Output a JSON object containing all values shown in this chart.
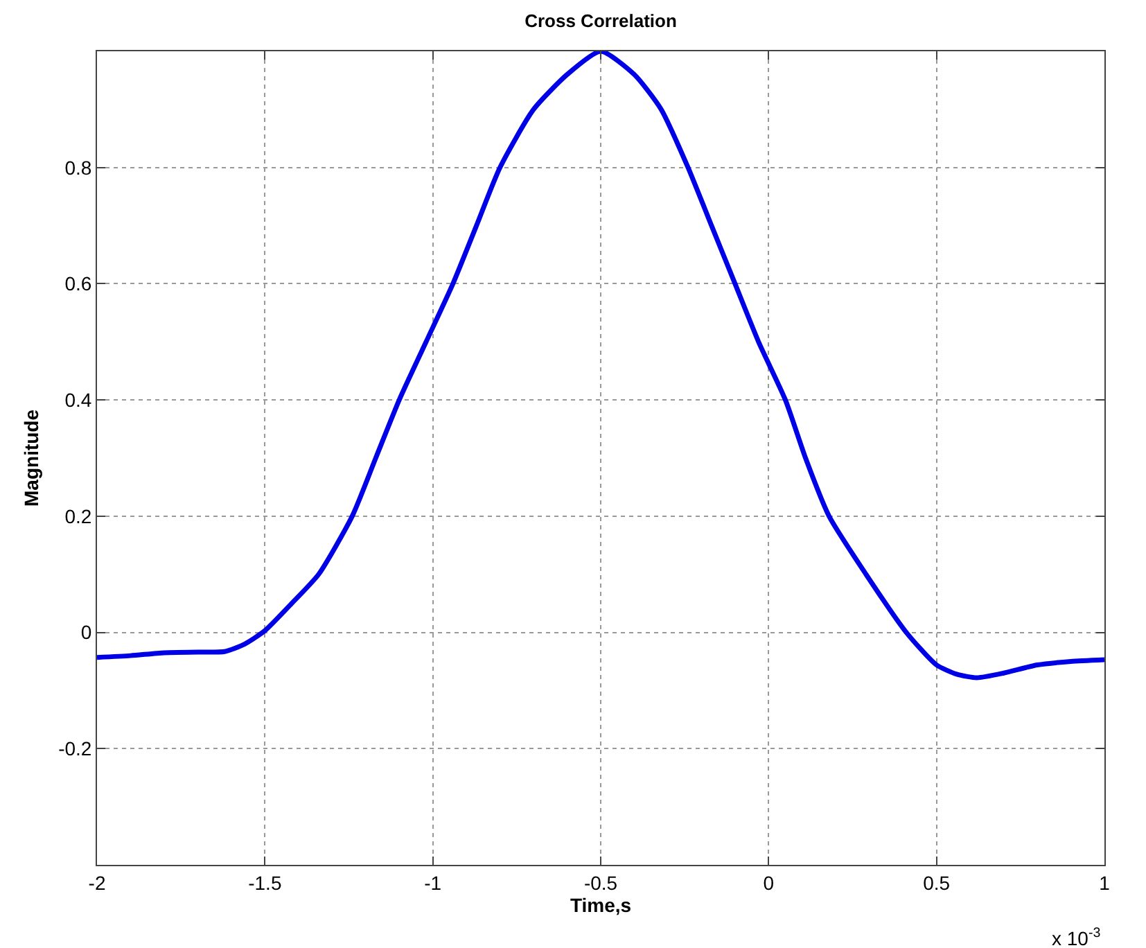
{
  "chart_data": {
    "type": "line",
    "title": "Cross Correlation",
    "xlabel": "Time,s",
    "ylabel": "Magnitude",
    "annotations": [
      "x 10$^{-3}$"
    ],
    "x": [
      -2,
      -1.9,
      -1.8,
      -1.7,
      -1.62,
      -1.56,
      -1.5,
      -1.42,
      -1.34,
      -1.24,
      -1.17,
      -1.1,
      -1.02,
      -0.94,
      -0.87,
      -0.8,
      -0.7,
      -0.6,
      -0.5,
      -0.4,
      -0.32,
      -0.24,
      -0.17,
      -0.1,
      -0.03,
      0.05,
      0.11,
      0.18,
      0.29,
      0.41,
      0.5,
      0.56,
      0.62,
      0.7,
      0.8,
      0.9,
      1
    ],
    "series": [
      {
        "color": "#0000e6",
        "values": [
          -0.043,
          -0.04,
          -0.035,
          -0.034,
          -0.033,
          -0.02,
          0.003,
          0.05,
          0.1,
          0.2,
          0.3,
          0.4,
          0.5,
          0.6,
          0.7,
          0.8,
          0.9,
          0.96,
          1.0,
          0.96,
          0.9,
          0.8,
          0.7,
          0.6,
          0.5,
          0.4,
          0.3,
          0.2,
          0.1,
          0.0,
          -0.056,
          -0.072,
          -0.078,
          -0.07,
          -0.056,
          -0.05,
          -0.047
        ]
      }
    ],
    "xlim": [
      -2,
      1
    ],
    "xticks": [
      -2,
      -1.5,
      -1,
      -0.5,
      0,
      0.5,
      1
    ],
    "ylim": [
      -0.4,
      1
    ],
    "yticks": [
      {
        "value": -0.4,
        "label": null
      },
      -0.2,
      0,
      0.2,
      0.4,
      0.6,
      0.8,
      {
        "value": 1,
        "label": null
      }
    ],
    "grid": true,
    "marker": "none",
    "line_style": "solid"
  }
}
